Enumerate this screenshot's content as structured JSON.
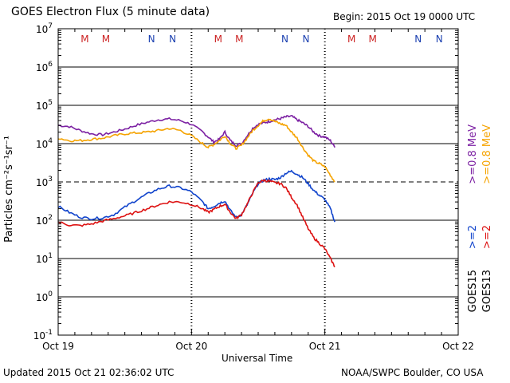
{
  "header": {
    "title": "GOES Electron Flux (5 minute data)",
    "begin": "Begin: 2015 Oct 19 0000 UTC"
  },
  "footer": {
    "updated": "Updated 2015 Oct 21 02:36:02 UTC",
    "credit": "NOAA/SWPC Boulder, CO USA"
  },
  "right_labels": {
    "goes15_line1": ">=0.8 MeV",
    "goes15_line2": ">=2",
    "goes15_sat": "GOES15",
    "goes13_line1": ">=0.8 MeV",
    "goes13_line2": ">=2",
    "goes13_sat": "GOES13"
  },
  "colors": {
    "goes15_08": "#7b1fa2",
    "goes13_08": "#f5a300",
    "goes15_2": "#1144cc",
    "goes13_2": "#dd1111",
    "marker_M": "#cc2222",
    "marker_N": "#1a3fb0"
  },
  "chart_data": {
    "type": "line",
    "title": "GOES Electron Flux (5 minute data)",
    "xlabel": "Universal Time",
    "ylabel": "Particles cm⁻²s⁻¹sr⁻¹",
    "yscale": "log",
    "ylim": [
      0.1,
      10000000
    ],
    "xlim": [
      0,
      72
    ],
    "x_unit": "hours since 2015 Oct 19 0000 UTC",
    "x_tick_labels": [
      {
        "x": 0,
        "label": "Oct 19"
      },
      {
        "x": 24,
        "label": "Oct 20"
      },
      {
        "x": 48,
        "label": "Oct 21"
      },
      {
        "x": 72,
        "label": "Oct 22"
      }
    ],
    "y_ticks": [
      {
        "exp": 7,
        "base": "10",
        "sup": "7"
      },
      {
        "exp": 6,
        "base": "10",
        "sup": "6"
      },
      {
        "exp": 5,
        "base": "10",
        "sup": "5"
      },
      {
        "exp": 4,
        "base": "10",
        "sup": "4"
      },
      {
        "exp": 3,
        "base": "10",
        "sup": "3"
      },
      {
        "exp": 2,
        "base": "10",
        "sup": "2"
      },
      {
        "exp": 1,
        "base": "10",
        "sup": "1"
      },
      {
        "exp": 0,
        "base": "10",
        "sup": "0"
      },
      {
        "exp": -1,
        "base": "10",
        "sup": "-1"
      }
    ],
    "alert_threshold": 1000,
    "markers": [
      {
        "label": "M",
        "x": 4.8,
        "color": "marker_M"
      },
      {
        "label": "M",
        "x": 8.6,
        "color": "marker_M"
      },
      {
        "label": "N",
        "x": 16.8,
        "color": "marker_N"
      },
      {
        "label": "N",
        "x": 20.6,
        "color": "marker_N"
      },
      {
        "label": "M",
        "x": 28.8,
        "color": "marker_M"
      },
      {
        "label": "M",
        "x": 32.6,
        "color": "marker_M"
      },
      {
        "label": "N",
        "x": 40.8,
        "color": "marker_N"
      },
      {
        "label": "N",
        "x": 44.6,
        "color": "marker_N"
      },
      {
        "label": "M",
        "x": 52.8,
        "color": "marker_M"
      },
      {
        "label": "M",
        "x": 56.6,
        "color": "marker_M"
      },
      {
        "label": "N",
        "x": 64.8,
        "color": "marker_N"
      },
      {
        "label": "N",
        "x": 68.6,
        "color": "marker_N"
      }
    ],
    "series": [
      {
        "name": "GOES15 >=0.8 MeV",
        "color": "goes15_08",
        "x": [
          0,
          2,
          4,
          6,
          8,
          10,
          12,
          14,
          16,
          18,
          20,
          22,
          24,
          26,
          27,
          28,
          29,
          30,
          31,
          32,
          33,
          34,
          35,
          36,
          37,
          38,
          39,
          40,
          41,
          42,
          43,
          44,
          45,
          46,
          47,
          48,
          49,
          49.8
        ],
        "values": [
          30000,
          28000,
          22000,
          18000,
          17000,
          20000,
          24000,
          30000,
          36000,
          42000,
          44000,
          40000,
          32000,
          20000,
          15000,
          11000,
          13000,
          20000,
          12000,
          9000,
          10000,
          16000,
          25000,
          32000,
          35000,
          38000,
          42000,
          45000,
          50000,
          52000,
          42000,
          35000,
          28000,
          20000,
          16000,
          15000,
          12000,
          8000
        ]
      },
      {
        "name": "GOES13 >=0.8 MeV",
        "color": "goes13_08",
        "x": [
          0,
          2,
          4,
          6,
          8,
          10,
          12,
          14,
          16,
          18,
          20,
          22,
          24,
          26,
          27,
          28,
          29,
          30,
          31,
          32,
          33,
          34,
          35,
          36,
          37,
          38,
          39,
          40,
          41,
          42,
          43,
          44,
          45,
          46,
          47,
          48,
          49,
          49.8
        ],
        "values": [
          14000,
          12000,
          12000,
          13000,
          14000,
          16000,
          18000,
          19000,
          20000,
          22000,
          25000,
          22000,
          16000,
          10000,
          8000,
          9500,
          12000,
          16000,
          10000,
          7500,
          9000,
          14000,
          22000,
          30000,
          40000,
          45000,
          38000,
          33000,
          30000,
          20000,
          14000,
          8000,
          5000,
          3500,
          3000,
          2500,
          1500,
          1000
        ]
      },
      {
        "name": "GOES15 >=2 MeV",
        "color": "goes15_2",
        "x": [
          0,
          2,
          4,
          6,
          8,
          10,
          12,
          14,
          16,
          18,
          20,
          22,
          24,
          26,
          27,
          28,
          29,
          30,
          31,
          32,
          33,
          34,
          35,
          36,
          37,
          38,
          39,
          40,
          41,
          42,
          43,
          44,
          45,
          46,
          47,
          48,
          49,
          49.8
        ],
        "values": [
          230,
          160,
          120,
          110,
          115,
          140,
          220,
          330,
          480,
          650,
          780,
          700,
          550,
          300,
          200,
          230,
          280,
          320,
          180,
          120,
          140,
          250,
          500,
          900,
          1100,
          1200,
          1150,
          1300,
          1700,
          1900,
          1600,
          1300,
          900,
          600,
          450,
          350,
          200,
          90
        ]
      },
      {
        "name": "GOES13 >=2 MeV",
        "color": "goes13_2",
        "x": [
          0,
          2,
          4,
          6,
          8,
          10,
          12,
          14,
          16,
          18,
          20,
          22,
          24,
          26,
          27,
          28,
          29,
          30,
          31,
          32,
          33,
          34,
          35,
          36,
          37,
          38,
          39,
          40,
          41,
          42,
          43,
          44,
          45,
          46,
          47,
          48,
          49,
          49.8
        ],
        "values": [
          90,
          75,
          72,
          80,
          95,
          110,
          130,
          160,
          200,
          250,
          300,
          300,
          260,
          200,
          160,
          190,
          230,
          260,
          160,
          110,
          140,
          260,
          520,
          950,
          1100,
          1050,
          950,
          900,
          700,
          400,
          250,
          120,
          60,
          35,
          25,
          18,
          10,
          6
        ]
      }
    ]
  }
}
